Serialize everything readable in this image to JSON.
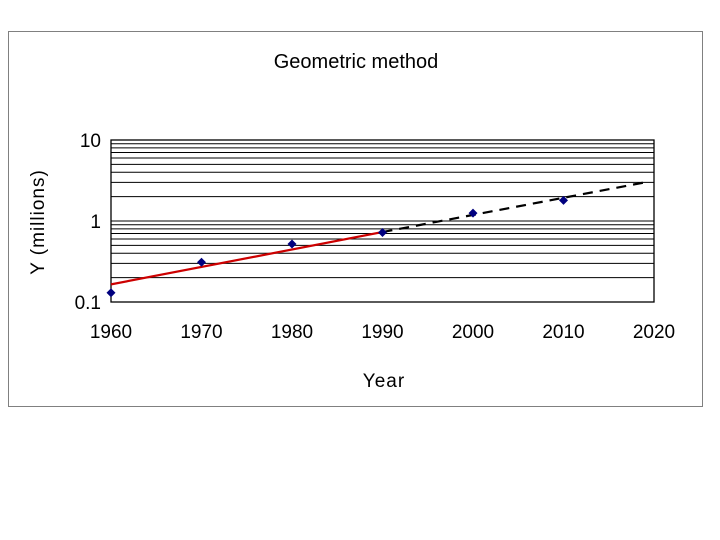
{
  "chart_data": {
    "type": "scatter",
    "title": "Geometric method",
    "xlabel": "Year",
    "ylabel": "Y (millions)",
    "xlim": [
      1960,
      2020
    ],
    "ylim": [
      0.1,
      10
    ],
    "yscale": "log",
    "x_ticks": [
      "1960",
      "1970",
      "1980",
      "1990",
      "2000",
      "2010",
      "2020"
    ],
    "y_ticks": [
      "0.1",
      "1",
      "10"
    ],
    "grid": "horizontal",
    "legend": "none",
    "series": [
      {
        "type": "scatter",
        "color": "#00007f",
        "marker": "diamond",
        "x": [
          1960,
          1970,
          1980,
          1990,
          2000,
          2010
        ],
        "y": [
          0.13,
          0.31,
          0.52,
          0.72,
          1.25,
          1.8
        ]
      },
      {
        "type": "line",
        "color": "#cc0000",
        "style": "solid",
        "x": [
          1960,
          1990
        ],
        "y": [
          0.165,
          0.73
        ]
      },
      {
        "type": "line",
        "color": "#000000",
        "style": "dashed",
        "x": [
          1990,
          2019
        ],
        "y": [
          0.73,
          3.0
        ]
      }
    ]
  }
}
